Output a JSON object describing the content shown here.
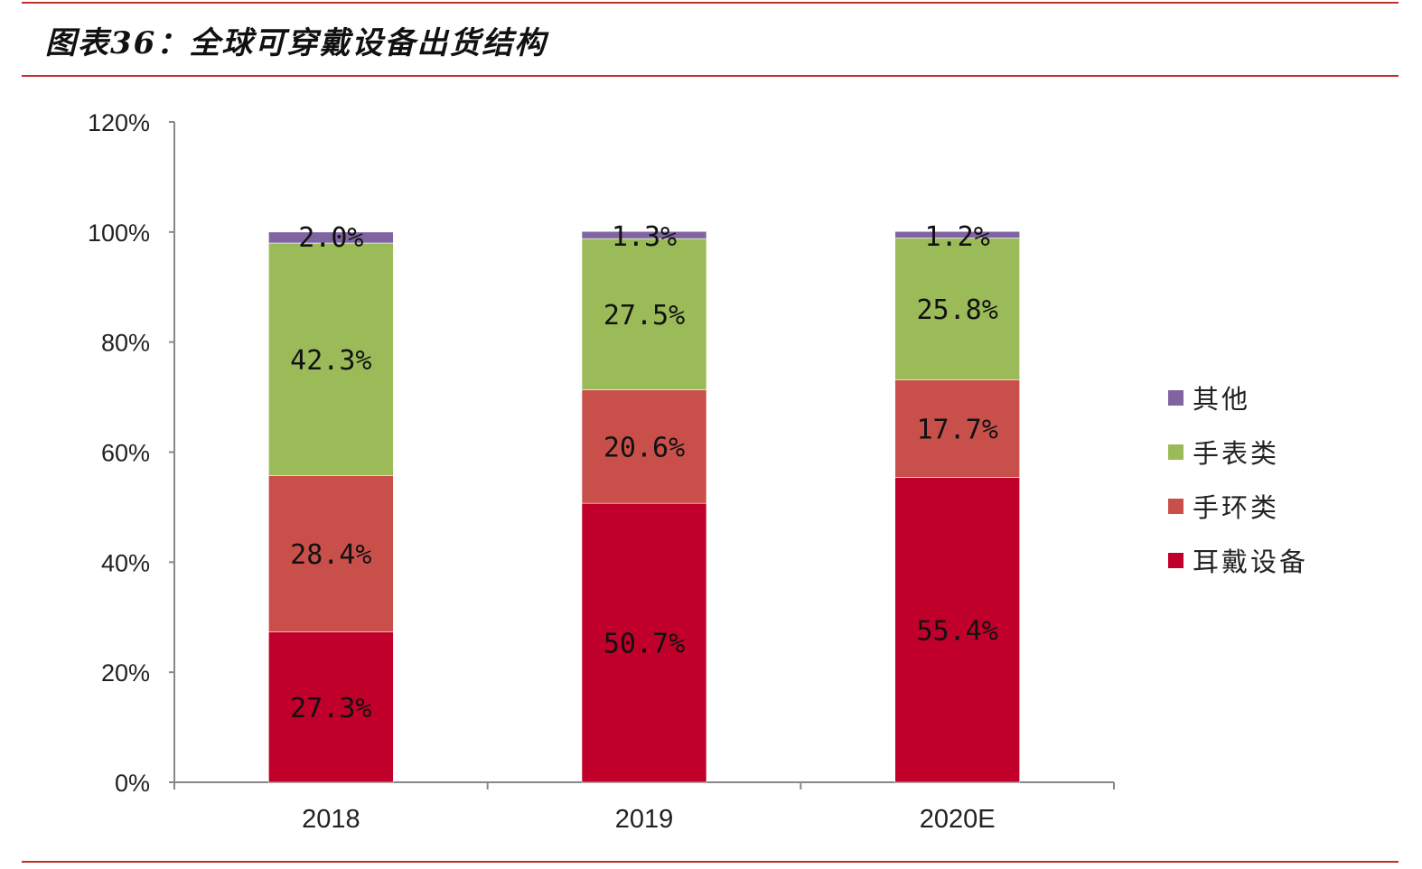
{
  "title": "图表36：全球可穿戴设备出货结构",
  "chart_data": {
    "type": "bar",
    "stacked": true,
    "title": "图表36：全球可穿戴设备出货结构",
    "xlabel": "",
    "ylabel": "",
    "categories": [
      "2018",
      "2019",
      "2020E"
    ],
    "ylim": [
      0,
      120
    ],
    "yticks": [
      "0%",
      "20%",
      "40%",
      "60%",
      "80%",
      "100%",
      "120%"
    ],
    "grid": false,
    "legend_position": "right",
    "series": [
      {
        "name": "耳戴设备",
        "values": [
          27.3,
          50.7,
          55.4
        ],
        "labels": [
          "27.3%",
          "50.7%",
          "55.4%"
        ],
        "color": "#c0002a"
      },
      {
        "name": "手环类",
        "values": [
          28.4,
          20.6,
          17.7
        ],
        "labels": [
          "28.4%",
          "20.6%",
          "17.7%"
        ],
        "color": "#c9504a"
      },
      {
        "name": "手表类",
        "values": [
          42.3,
          27.5,
          25.8
        ],
        "labels": [
          "42.3%",
          "27.5%",
          "25.8%"
        ],
        "color": "#9bbb59"
      },
      {
        "name": "其他",
        "values": [
          2.0,
          1.3,
          1.2
        ],
        "labels": [
          "2.0%",
          "1.3%",
          "1.2%"
        ],
        "color": "#8064a2"
      }
    ]
  }
}
